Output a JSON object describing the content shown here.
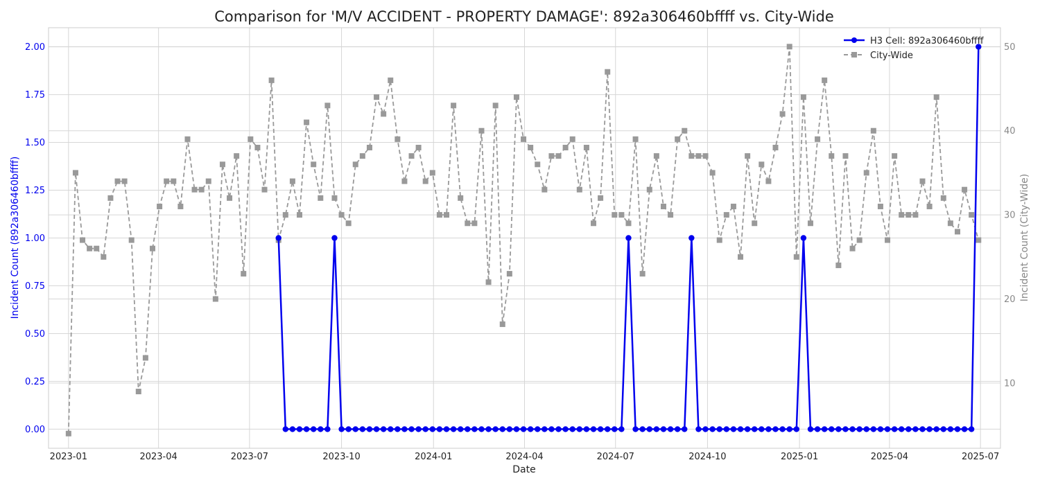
{
  "chart_data": {
    "type": "line",
    "title": "Comparison for 'M/V ACCIDENT - PROPERTY DAMAGE': 892a306460bffff vs. City-Wide",
    "xlabel": "Date",
    "ylabel_left": "Incident Count (892a306460bffff)",
    "ylabel_right": "Incident Count (City-Wide)",
    "x_ticks": [
      "2023-01",
      "2023-04",
      "2023-07",
      "2023-10",
      "2024-01",
      "2024-04",
      "2024-07",
      "2024-10",
      "2025-01",
      "2025-04",
      "2025-07"
    ],
    "y_left_ticks": [
      "0.00",
      "0.25",
      "0.50",
      "0.75",
      "1.00",
      "1.25",
      "1.50",
      "1.75",
      "2.00"
    ],
    "y_right_ticks": [
      "10",
      "20",
      "30",
      "40",
      "50"
    ],
    "ylim_left": [
      -0.1,
      2.1
    ],
    "ylim_right": [
      2.25,
      52.25
    ],
    "x_range": [
      "2022-12-12",
      "2025-07-21"
    ],
    "grid": true,
    "legend_position": "top-right",
    "colors": {
      "h3": "#0000ee",
      "city": "#999999",
      "left_axis": "#0000ee",
      "right_axis": "#888888"
    },
    "series": [
      {
        "name": "H3 Cell: 892a306460bffff",
        "axis": "left",
        "x": [
          "2023-07-30",
          "2023-08-06",
          "2023-08-13",
          "2023-08-20",
          "2023-08-27",
          "2023-09-03",
          "2023-09-10",
          "2023-09-17",
          "2023-09-24",
          "2023-10-01",
          "2023-10-08",
          "2023-10-15",
          "2023-10-22",
          "2023-10-29",
          "2023-11-05",
          "2023-11-12",
          "2023-11-19",
          "2023-11-26",
          "2023-12-03",
          "2023-12-10",
          "2023-12-17",
          "2023-12-24",
          "2023-12-31",
          "2024-01-07",
          "2024-01-14",
          "2024-01-21",
          "2024-01-28",
          "2024-02-04",
          "2024-02-11",
          "2024-02-18",
          "2024-02-25",
          "2024-03-03",
          "2024-03-10",
          "2024-03-17",
          "2024-03-24",
          "2024-03-31",
          "2024-04-07",
          "2024-04-14",
          "2024-04-21",
          "2024-04-28",
          "2024-05-05",
          "2024-05-12",
          "2024-05-19",
          "2024-05-26",
          "2024-06-02",
          "2024-06-09",
          "2024-06-16",
          "2024-06-23",
          "2024-06-30",
          "2024-07-07",
          "2024-07-14",
          "2024-07-21",
          "2024-07-28",
          "2024-08-04",
          "2024-08-11",
          "2024-08-18",
          "2024-08-25",
          "2024-09-01",
          "2024-09-08",
          "2024-09-15",
          "2024-09-22",
          "2024-09-29",
          "2024-10-06",
          "2024-10-13",
          "2024-10-20",
          "2024-10-27",
          "2024-11-03",
          "2024-11-10",
          "2024-11-17",
          "2024-11-24",
          "2024-12-01",
          "2024-12-08",
          "2024-12-15",
          "2024-12-22",
          "2024-12-29",
          "2025-01-05",
          "2025-01-12",
          "2025-01-19",
          "2025-01-26",
          "2025-02-02",
          "2025-02-09",
          "2025-02-16",
          "2025-02-23",
          "2025-03-02",
          "2025-03-09",
          "2025-03-16",
          "2025-03-23",
          "2025-03-30",
          "2025-04-06",
          "2025-04-13",
          "2025-04-20",
          "2025-04-27",
          "2025-05-04",
          "2025-05-11",
          "2025-05-18",
          "2025-05-25",
          "2025-06-01",
          "2025-06-08",
          "2025-06-15",
          "2025-06-22",
          "2025-06-29"
        ],
        "values": [
          1,
          0,
          0,
          0,
          0,
          0,
          0,
          0,
          1,
          0,
          0,
          0,
          0,
          0,
          0,
          0,
          0,
          0,
          0,
          0,
          0,
          0,
          0,
          0,
          0,
          0,
          0,
          0,
          0,
          0,
          0,
          0,
          0,
          0,
          0,
          0,
          0,
          0,
          0,
          0,
          0,
          0,
          0,
          0,
          0,
          0,
          0,
          0,
          0,
          0,
          1,
          0,
          0,
          0,
          0,
          0,
          0,
          0,
          0,
          1,
          0,
          0,
          0,
          0,
          0,
          0,
          0,
          0,
          0,
          0,
          0,
          0,
          0,
          0,
          0,
          1,
          0,
          0,
          0,
          0,
          0,
          0,
          0,
          0,
          0,
          0,
          0,
          0,
          0,
          0,
          0,
          0,
          0,
          0,
          0,
          0,
          0,
          0,
          0,
          0,
          2
        ]
      },
      {
        "name": "City-Wide",
        "axis": "right",
        "x": [
          "2023-01-01",
          "2023-01-08",
          "2023-01-15",
          "2023-01-22",
          "2023-01-29",
          "2023-02-05",
          "2023-02-12",
          "2023-02-19",
          "2023-02-26",
          "2023-03-05",
          "2023-03-12",
          "2023-03-19",
          "2023-03-26",
          "2023-04-02",
          "2023-04-09",
          "2023-04-16",
          "2023-04-23",
          "2023-04-30",
          "2023-05-07",
          "2023-05-14",
          "2023-05-21",
          "2023-05-28",
          "2023-06-04",
          "2023-06-11",
          "2023-06-18",
          "2023-06-25",
          "2023-07-02",
          "2023-07-09",
          "2023-07-16",
          "2023-07-23",
          "2023-07-30",
          "2023-08-06",
          "2023-08-13",
          "2023-08-20",
          "2023-08-27",
          "2023-09-03",
          "2023-09-10",
          "2023-09-17",
          "2023-09-24",
          "2023-10-01",
          "2023-10-08",
          "2023-10-15",
          "2023-10-22",
          "2023-10-29",
          "2023-11-05",
          "2023-11-12",
          "2023-11-19",
          "2023-11-26",
          "2023-12-03",
          "2023-12-10",
          "2023-12-17",
          "2023-12-24",
          "2023-12-31",
          "2024-01-07",
          "2024-01-14",
          "2024-01-21",
          "2024-01-28",
          "2024-02-04",
          "2024-02-11",
          "2024-02-18",
          "2024-02-25",
          "2024-03-03",
          "2024-03-10",
          "2024-03-17",
          "2024-03-24",
          "2024-03-31",
          "2024-04-07",
          "2024-04-14",
          "2024-04-21",
          "2024-04-28",
          "2024-05-05",
          "2024-05-12",
          "2024-05-19",
          "2024-05-26",
          "2024-06-02",
          "2024-06-09",
          "2024-06-16",
          "2024-06-23",
          "2024-06-30",
          "2024-07-07",
          "2024-07-14",
          "2024-07-21",
          "2024-07-28",
          "2024-08-04",
          "2024-08-11",
          "2024-08-18",
          "2024-08-25",
          "2024-09-01",
          "2024-09-08",
          "2024-09-15",
          "2024-09-22",
          "2024-09-29",
          "2024-10-06",
          "2024-10-13",
          "2024-10-20",
          "2024-10-27",
          "2024-11-03",
          "2024-11-10",
          "2024-11-17",
          "2024-11-24",
          "2024-12-01",
          "2024-12-08",
          "2024-12-15",
          "2024-12-22",
          "2024-12-29",
          "2025-01-05",
          "2025-01-12",
          "2025-01-19",
          "2025-01-26",
          "2025-02-02",
          "2025-02-09",
          "2025-02-16",
          "2025-02-23",
          "2025-03-02",
          "2025-03-09",
          "2025-03-16",
          "2025-03-23",
          "2025-03-30",
          "2025-04-06",
          "2025-04-13",
          "2025-04-20",
          "2025-04-27",
          "2025-05-04",
          "2025-05-11",
          "2025-05-18",
          "2025-05-25",
          "2025-06-01",
          "2025-06-08",
          "2025-06-15",
          "2025-06-22",
          "2025-06-29"
        ],
        "values": [
          4,
          35,
          27,
          26,
          26,
          25,
          32,
          34,
          34,
          27,
          9,
          13,
          26,
          31,
          34,
          34,
          31,
          39,
          33,
          33,
          34,
          20,
          36,
          32,
          37,
          23,
          39,
          38,
          33,
          46,
          27,
          30,
          34,
          30,
          41,
          36,
          32,
          43,
          32,
          30,
          29,
          36,
          37,
          38,
          44,
          42,
          46,
          39,
          34,
          37,
          38,
          34,
          35,
          30,
          30,
          43,
          32,
          29,
          29,
          40,
          22,
          43,
          17,
          23,
          44,
          39,
          38,
          36,
          33,
          37,
          37,
          38,
          39,
          33,
          38,
          29,
          32,
          47,
          30,
          30,
          29,
          39,
          23,
          33,
          37,
          31,
          30,
          39,
          40,
          37,
          37,
          37,
          35,
          27,
          30,
          31,
          25,
          37,
          29,
          36,
          34,
          38,
          42,
          50,
          25,
          44,
          29,
          39,
          46,
          37,
          24,
          37,
          26,
          27,
          35,
          40,
          31,
          27,
          37,
          30,
          30,
          30,
          34,
          31,
          44,
          32,
          29,
          28,
          33,
          30,
          27
        ]
      }
    ]
  }
}
